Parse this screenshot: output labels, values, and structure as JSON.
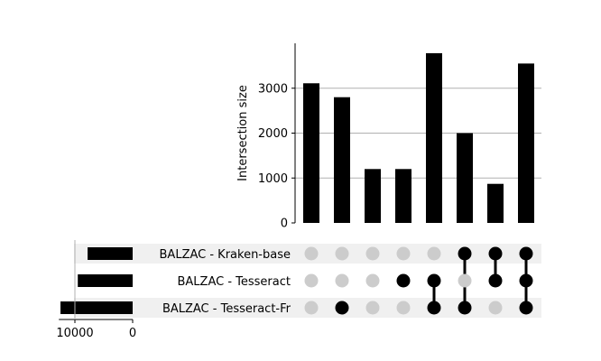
{
  "chart_data": {
    "type": "bar",
    "subtype": "upset",
    "ylabel": "Intersection size",
    "ylim": [
      0,
      4000
    ],
    "yticks": [
      0,
      1000,
      2000,
      3000
    ],
    "ytick_labels": [
      "0",
      "1000",
      "2000",
      "3000"
    ],
    "grid": "horizontal",
    "sets": [
      {
        "name": "BALZAC - Kraken-base",
        "size": 7800
      },
      {
        "name": "BALZAC - Tesseract",
        "size": 9500
      },
      {
        "name": "BALZAC - Tesseract-Fr",
        "size": 12500
      }
    ],
    "set_size_ticks": [
      10000,
      0
    ],
    "set_size_tick_labels": [
      "10000",
      "0"
    ],
    "intersections": [
      {
        "members": [],
        "value": 3110
      },
      {
        "members": [
          2
        ],
        "value": 2800
      },
      {
        "members": [],
        "value": 1200
      },
      {
        "members": [
          1
        ],
        "value": 1200
      },
      {
        "members": [
          1,
          2
        ],
        "value": 3780
      },
      {
        "members": [
          0,
          2
        ],
        "value": 2000
      },
      {
        "members": [
          0,
          1
        ],
        "value": 870
      },
      {
        "members": [
          0,
          1,
          2
        ],
        "value": 3550
      }
    ],
    "colors": {
      "bar": "#000000",
      "active_dot": "#000000",
      "inactive_dot": "#cccccc",
      "grid": "#b0b0b0",
      "stripe": "#f0f0f0"
    }
  }
}
